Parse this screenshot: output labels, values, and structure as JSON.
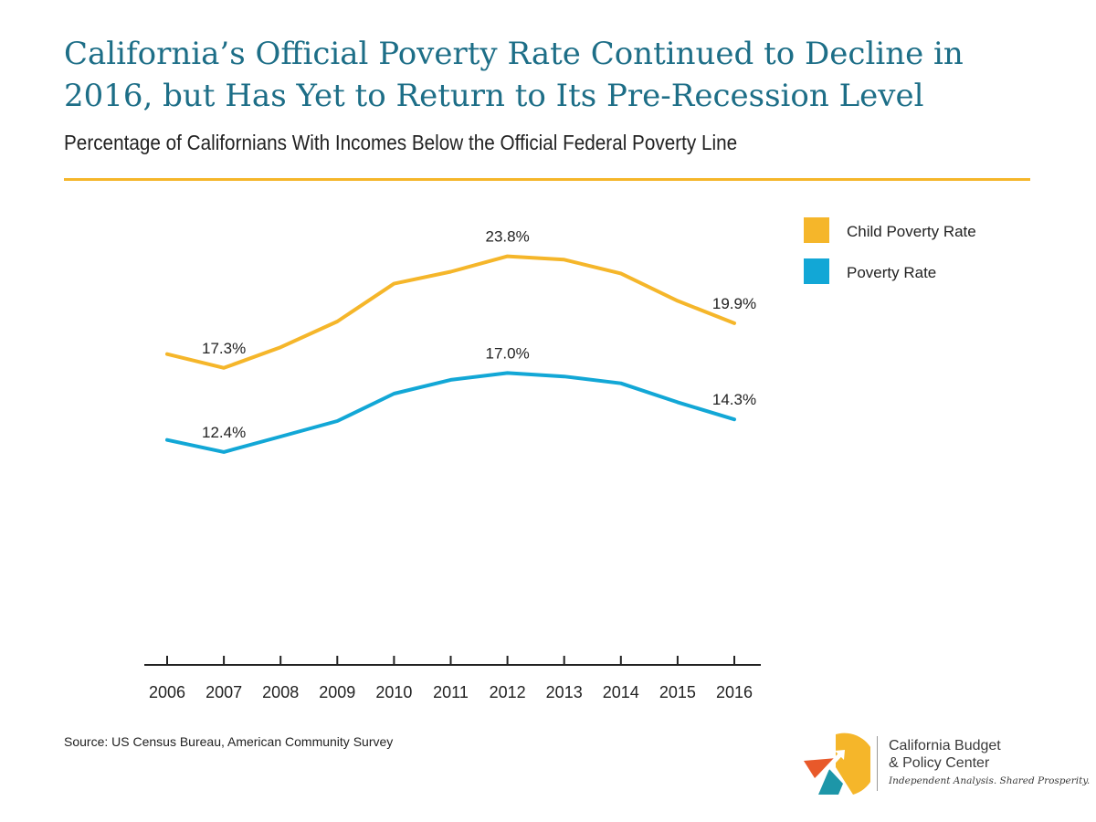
{
  "header": {
    "title": "California’s Official Poverty Rate Continued to Decline in 2016, but Has Yet to Return to Its Pre-Recession Level",
    "subtitle": "Percentage of Californians With Incomes Below the Official Federal Poverty Line"
  },
  "colors": {
    "title": "#1d6e87",
    "rule": "#f5b62a",
    "child_series": "#f5b62a",
    "poverty_series": "#12a7d6",
    "axis": "#222222"
  },
  "chart_data": {
    "type": "line",
    "title": "California’s Official Poverty Rate Continued to Decline in 2016, but Has Yet to Return to Its Pre-Recession Level",
    "subtitle": "Percentage of Californians With Incomes Below the Official Federal Poverty Line",
    "xlabel": "",
    "ylabel": "",
    "x": [
      "2006",
      "2007",
      "2008",
      "2009",
      "2010",
      "2011",
      "2012",
      "2013",
      "2014",
      "2015",
      "2016"
    ],
    "series": [
      {
        "name": "Child Poverty Rate",
        "color": "#f5b62a",
        "values": [
          18.1,
          17.3,
          18.5,
          20.0,
          22.2,
          22.9,
          23.8,
          23.6,
          22.8,
          21.2,
          19.9
        ]
      },
      {
        "name": "Poverty Rate",
        "color": "#12a7d6",
        "values": [
          13.1,
          12.4,
          13.3,
          14.2,
          15.8,
          16.6,
          17.0,
          16.8,
          16.4,
          15.3,
          14.3
        ]
      }
    ],
    "data_labels": [
      {
        "series": 0,
        "index": 1,
        "text": "17.3%"
      },
      {
        "series": 0,
        "index": 6,
        "text": "23.8%"
      },
      {
        "series": 0,
        "index": 10,
        "text": "19.9%"
      },
      {
        "series": 1,
        "index": 1,
        "text": "12.4%"
      },
      {
        "series": 1,
        "index": 6,
        "text": "17.0%"
      },
      {
        "series": 1,
        "index": 10,
        "text": "14.3%"
      }
    ],
    "ylim": [
      0,
      27
    ],
    "grid": false,
    "legend_position": "top-right"
  },
  "footer": {
    "source": "Source: US Census Bureau, American Community Survey"
  },
  "logo": {
    "name_line1": "California Budget",
    "name_line2": "& Policy Center",
    "tagline": "Independent Analysis. Shared Prosperity."
  }
}
